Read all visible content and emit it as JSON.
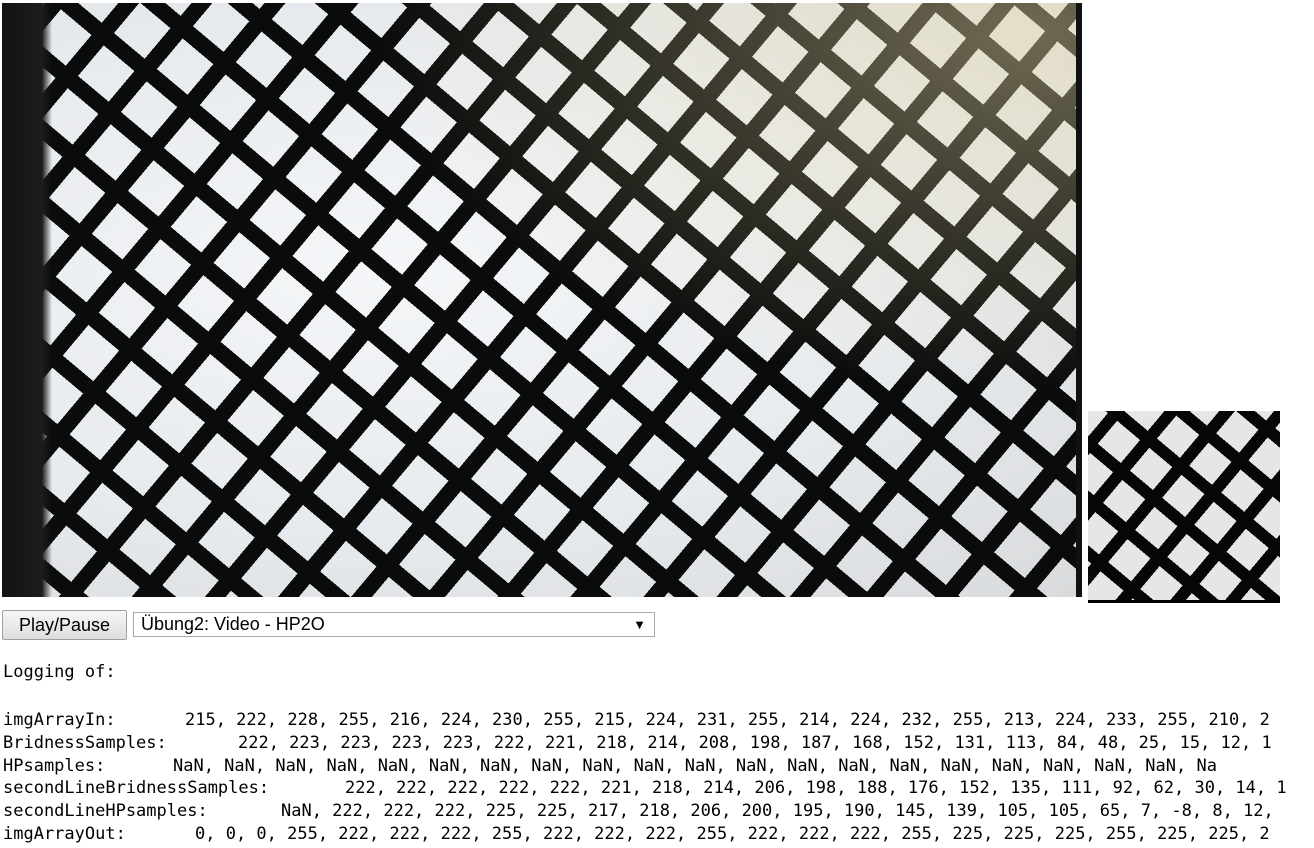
{
  "controls": {
    "play_pause_label": "Play/Pause",
    "mode_select_value": "Übung2: Video - HP2O"
  },
  "log": {
    "heading": "Logging of:",
    "lines": [
      {
        "label": "imgArrayIn:",
        "values": "215, 222, 228, 255, 216, 224, 230, 255, 215, 224, 231, 255, 214, 224, 232, 255, 213, 224, 233, 255, 210, 2"
      },
      {
        "label": "BridnessSamples:",
        "values": "222, 223, 223, 223, 223, 222, 221, 218, 214, 208, 198, 187, 168, 152, 131, 113, 84, 48, 25, 15, 12, 1"
      },
      {
        "label": "HPsamples:",
        "values": "NaN, NaN, NaN, NaN, NaN, NaN, NaN, NaN, NaN, NaN, NaN, NaN, NaN, NaN, NaN, NaN, NaN, NaN, NaN, NaN, Na"
      },
      {
        "label": "secondLineBridnessSamples:",
        "values": "222, 222, 222, 222, 222, 221, 218, 214, 206, 198, 188, 176, 152, 135, 111, 92, 62, 30, 14, 1"
      },
      {
        "label": "secondLineHPsamples:",
        "values": "NaN, 222, 222, 222, 225, 225, 217, 218, 206, 200, 195, 190, 145, 139, 105, 105, 65, 7, -8, 8, 12,"
      },
      {
        "label": "imgArrayOut:",
        "values": "0, 0, 0, 255, 222, 222, 222, 255, 222, 222, 222, 255, 222, 222, 222, 255, 225, 225, 225, 255, 225, 225, 2"
      }
    ]
  },
  "icons": {
    "dropdown": "chevron-down-icon"
  },
  "colors": {
    "mesh": "#0a0c0b",
    "background_panel": "#eef0f2"
  }
}
